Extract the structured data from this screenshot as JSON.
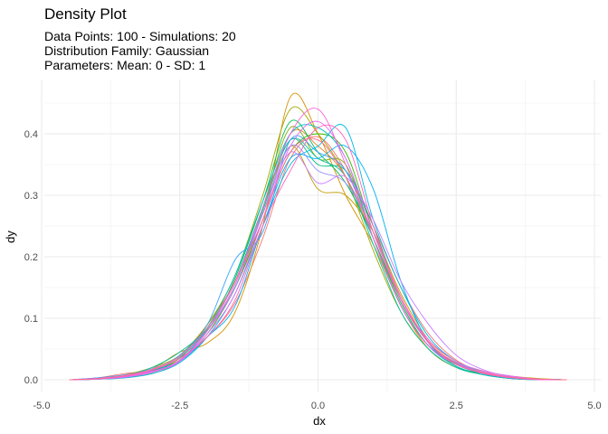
{
  "chart_data": {
    "type": "line",
    "title": "Density Plot",
    "subtitle": [
      "Data Points: 100 - Simulations: 20",
      "Distribution Family: Gaussian",
      "Parameters: Mean: 0 - SD: 1"
    ],
    "xlabel": "dx",
    "ylabel": "dy",
    "xlim": [
      -5.0,
      5.0
    ],
    "ylim": [
      0.0,
      0.45
    ],
    "x_ticks": [
      -5.0,
      -2.5,
      0.0,
      2.5,
      5.0
    ],
    "x_tick_labels": [
      "-5.0",
      "-2.5",
      "0.0",
      "2.5",
      "5.0"
    ],
    "y_ticks": [
      0.0,
      0.1,
      0.2,
      0.3,
      0.4
    ],
    "y_tick_labels": [
      "0.0",
      "0.1",
      "0.2",
      "0.3",
      "0.4"
    ],
    "grid": true,
    "legend": "none",
    "x": [
      -4.5,
      -4.0,
      -3.5,
      -3.0,
      -2.5,
      -2.0,
      -1.5,
      -1.0,
      -0.5,
      0.0,
      0.5,
      1.0,
      1.5,
      2.0,
      2.5,
      3.0,
      3.5,
      4.0,
      4.5
    ],
    "series": [
      {
        "color": "#F8766D",
        "values": [
          0.0,
          0.003,
          0.01,
          0.016,
          0.035,
          0.07,
          0.125,
          0.23,
          0.36,
          0.395,
          0.34,
          0.25,
          0.15,
          0.075,
          0.032,
          0.012,
          0.004,
          0.001,
          0.0
        ]
      },
      {
        "color": "#EA8331",
        "values": [
          0.0,
          0.001,
          0.004,
          0.01,
          0.03,
          0.08,
          0.15,
          0.26,
          0.4,
          0.38,
          0.33,
          0.23,
          0.13,
          0.06,
          0.028,
          0.012,
          0.003,
          0.001,
          0.0
        ]
      },
      {
        "color": "#D89000",
        "values": [
          0.0,
          0.002,
          0.006,
          0.018,
          0.045,
          0.06,
          0.11,
          0.25,
          0.46,
          0.4,
          0.3,
          0.22,
          0.12,
          0.05,
          0.02,
          0.01,
          0.003,
          0.0,
          0.0
        ]
      },
      {
        "color": "#C09B00",
        "values": [
          0.0,
          0.001,
          0.004,
          0.014,
          0.04,
          0.09,
          0.16,
          0.27,
          0.38,
          0.31,
          0.3,
          0.24,
          0.14,
          0.065,
          0.03,
          0.014,
          0.006,
          0.002,
          0.0
        ]
      },
      {
        "color": "#A3A500",
        "values": [
          0.0,
          0.002,
          0.008,
          0.02,
          0.04,
          0.09,
          0.17,
          0.3,
          0.44,
          0.4,
          0.33,
          0.21,
          0.11,
          0.05,
          0.02,
          0.008,
          0.002,
          0.0,
          0.0
        ]
      },
      {
        "color": "#7CAE00",
        "values": [
          0.0,
          0.001,
          0.005,
          0.012,
          0.035,
          0.085,
          0.16,
          0.28,
          0.41,
          0.36,
          0.35,
          0.23,
          0.12,
          0.055,
          0.025,
          0.01,
          0.003,
          0.001,
          0.0
        ]
      },
      {
        "color": "#39B600",
        "values": [
          0.0,
          0.001,
          0.005,
          0.015,
          0.03,
          0.075,
          0.15,
          0.26,
          0.37,
          0.4,
          0.37,
          0.24,
          0.13,
          0.06,
          0.022,
          0.01,
          0.003,
          0.001,
          0.0
        ]
      },
      {
        "color": "#00BB4E",
        "values": [
          0.0,
          0.002,
          0.006,
          0.012,
          0.032,
          0.08,
          0.165,
          0.29,
          0.42,
          0.37,
          0.32,
          0.23,
          0.125,
          0.055,
          0.025,
          0.01,
          0.003,
          0.001,
          0.0
        ]
      },
      {
        "color": "#00BF7D",
        "values": [
          0.0,
          0.001,
          0.004,
          0.013,
          0.036,
          0.082,
          0.15,
          0.275,
          0.39,
          0.35,
          0.34,
          0.25,
          0.13,
          0.06,
          0.026,
          0.01,
          0.003,
          0.001,
          0.0
        ]
      },
      {
        "color": "#00C1A3",
        "values": [
          0.0,
          0.002,
          0.007,
          0.02,
          0.045,
          0.085,
          0.16,
          0.28,
          0.39,
          0.36,
          0.33,
          0.22,
          0.11,
          0.05,
          0.02,
          0.008,
          0.002,
          0.0,
          0.0
        ]
      },
      {
        "color": "#00BFC4",
        "values": [
          0.0,
          0.001,
          0.004,
          0.016,
          0.032,
          0.085,
          0.17,
          0.29,
          0.4,
          0.41,
          0.36,
          0.23,
          0.12,
          0.055,
          0.022,
          0.008,
          0.002,
          0.0,
          0.0
        ]
      },
      {
        "color": "#00BAE0",
        "values": [
          0.0,
          0.001,
          0.003,
          0.01,
          0.028,
          0.07,
          0.14,
          0.25,
          0.35,
          0.38,
          0.41,
          0.26,
          0.15,
          0.07,
          0.03,
          0.012,
          0.004,
          0.001,
          0.0
        ]
      },
      {
        "color": "#00B0F6",
        "values": [
          0.0,
          0.002,
          0.006,
          0.014,
          0.03,
          0.07,
          0.12,
          0.25,
          0.36,
          0.36,
          0.38,
          0.31,
          0.16,
          0.06,
          0.025,
          0.01,
          0.004,
          0.001,
          0.0
        ]
      },
      {
        "color": "#35A2FF",
        "values": [
          0.0,
          0.003,
          0.008,
          0.016,
          0.04,
          0.09,
          0.195,
          0.24,
          0.39,
          0.37,
          0.34,
          0.23,
          0.12,
          0.055,
          0.025,
          0.012,
          0.004,
          0.001,
          0.0
        ]
      },
      {
        "color": "#9590FF",
        "values": [
          0.0,
          0.002,
          0.007,
          0.018,
          0.038,
          0.08,
          0.15,
          0.27,
          0.38,
          0.34,
          0.32,
          0.24,
          0.135,
          0.06,
          0.028,
          0.012,
          0.004,
          0.001,
          0.0
        ]
      },
      {
        "color": "#C77CFF",
        "values": [
          0.0,
          0.001,
          0.004,
          0.012,
          0.03,
          0.08,
          0.16,
          0.27,
          0.37,
          0.32,
          0.33,
          0.26,
          0.16,
          0.09,
          0.04,
          0.016,
          0.005,
          0.001,
          0.0
        ]
      },
      {
        "color": "#E76BF3",
        "values": [
          0.0,
          0.002,
          0.006,
          0.014,
          0.03,
          0.075,
          0.14,
          0.26,
          0.38,
          0.42,
          0.36,
          0.24,
          0.13,
          0.065,
          0.03,
          0.014,
          0.006,
          0.001,
          0.0
        ]
      },
      {
        "color": "#FA62DB",
        "values": [
          0.0,
          0.001,
          0.005,
          0.013,
          0.032,
          0.08,
          0.155,
          0.28,
          0.4,
          0.44,
          0.35,
          0.23,
          0.12,
          0.055,
          0.025,
          0.01,
          0.003,
          0.0,
          0.0
        ]
      },
      {
        "color": "#FF62BC",
        "values": [
          0.0,
          0.002,
          0.006,
          0.016,
          0.035,
          0.07,
          0.13,
          0.25,
          0.34,
          0.41,
          0.39,
          0.25,
          0.13,
          0.06,
          0.025,
          0.012,
          0.004,
          0.001,
          0.0
        ]
      },
      {
        "color": "#FF6C91",
        "values": [
          0.0,
          0.002,
          0.007,
          0.017,
          0.038,
          0.085,
          0.16,
          0.26,
          0.37,
          0.39,
          0.33,
          0.24,
          0.135,
          0.062,
          0.027,
          0.011,
          0.004,
          0.001,
          0.0
        ]
      }
    ]
  }
}
